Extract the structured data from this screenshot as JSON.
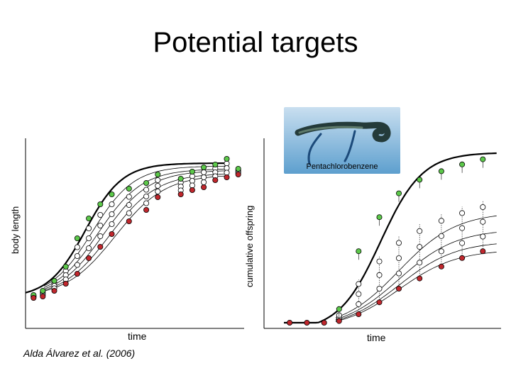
{
  "slide": {
    "title": "Potential targets",
    "citation": "Alda Álvarez et al. (2006)"
  },
  "photo": {
    "caption": "Pentachlorobenzene"
  },
  "colors": {
    "control": "#5cc84a",
    "high_dose": "#c0272d",
    "intermediate": "#ffffff",
    "stroke": "#000000"
  },
  "chart_data": [
    {
      "type": "line",
      "xlabel": "time",
      "ylabel": "body length",
      "series": [
        {
          "marker": "green",
          "x": [
            0.7,
            1.5,
            2.5,
            3.5,
            4.5,
            5.5,
            6.5,
            7.5,
            9,
            10.5,
            11.5,
            13.5,
            14.5,
            15.5,
            16.5,
            17.5,
            18.5
          ],
          "values": [
            0.02,
            0.05,
            0.12,
            0.22,
            0.42,
            0.56,
            0.66,
            0.73,
            0.77,
            0.81,
            0.87,
            0.84,
            0.89,
            0.92,
            0.94,
            0.98,
            0.91
          ]
        },
        {
          "marker": "red",
          "x": [
            0.7,
            1.5,
            2.5,
            3.5,
            4.5,
            5.5,
            6.5,
            7.5,
            9,
            10.5,
            11.5,
            13.5,
            14.5,
            15.5,
            16.5,
            17.5,
            18.5
          ],
          "values": [
            0.0,
            0.01,
            0.05,
            0.1,
            0.17,
            0.28,
            0.36,
            0.45,
            0.54,
            0.62,
            0.71,
            0.73,
            0.76,
            0.78,
            0.83,
            0.85,
            0.87
          ]
        }
      ]
    },
    {
      "type": "line",
      "xlabel": "time",
      "ylabel": "cumulative offspring",
      "series": [
        {
          "marker": "red",
          "x": [
            0.5,
            2,
            3.5
          ],
          "values": [
            0.0,
            0.0,
            0.0
          ]
        },
        {
          "marker": "green",
          "x": [
            4.8,
            6.5,
            8.3,
            10,
            11.8,
            13.7,
            15.5,
            17.3
          ],
          "values": [
            0.08,
            0.42,
            0.62,
            0.76,
            0.84,
            0.89,
            0.93,
            0.96
          ]
        },
        {
          "marker": "red",
          "x": [
            4.8,
            6.5,
            8.3,
            10,
            11.8,
            13.7,
            15.5,
            17.3
          ],
          "values": [
            0.01,
            0.05,
            0.12,
            0.2,
            0.26,
            0.33,
            0.38,
            0.42
          ]
        }
      ]
    }
  ]
}
